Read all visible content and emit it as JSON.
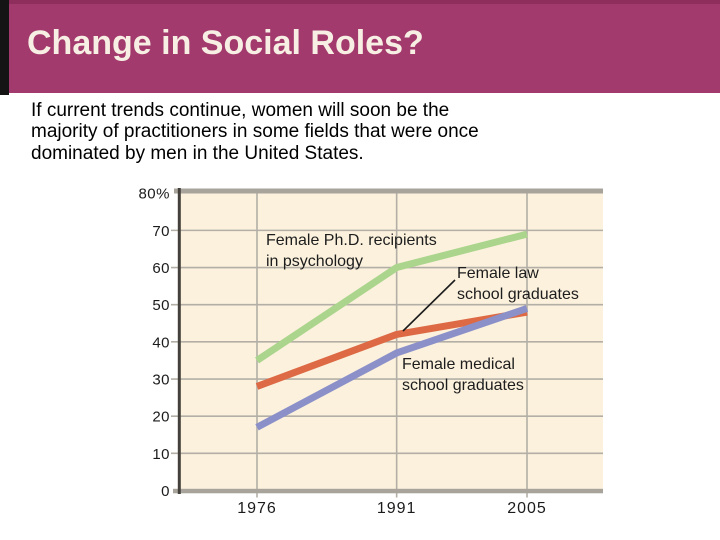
{
  "header": {
    "title": "Change in Social Roles?"
  },
  "body": {
    "lines": [
      "If current trends continue, women will soon be the",
      "majority of practitioners in some fields that were once",
      "dominated by men in the United States."
    ]
  },
  "colors": {
    "slide_bg": "#ffffff",
    "black_edge": "#141414",
    "header_bg": "#a23a6e",
    "header_top_edge": "#8d2e5c",
    "title_text": "#f7efe3",
    "plot_bg": "#fbf1dd",
    "gridline": "#b3afa6",
    "axis_gray": "#a8a49c",
    "axis_dark": "#44413c",
    "label_text": "#1b1b1b"
  },
  "chart_data": {
    "type": "line",
    "title": "",
    "xlabel": "",
    "ylabel": "",
    "x": [
      1976,
      1991,
      2005
    ],
    "x_tick_labels": [
      "1976",
      "1991",
      "2005"
    ],
    "y_ticks": [
      0,
      10,
      20,
      30,
      40,
      50,
      60,
      70,
      80
    ],
    "y_tick_labels": [
      "0",
      "10",
      "20",
      "30",
      "40",
      "50",
      "60",
      "70",
      "80%"
    ],
    "ylim": [
      0,
      80
    ],
    "grid": true,
    "legend_position": "inline-annotations",
    "series": [
      {
        "name": "Female Ph.D. recipients in psychology",
        "color": "#abd48c",
        "values": [
          35,
          60,
          69
        ],
        "label_lines": [
          "Female Ph.D. recipients",
          "in psychology"
        ]
      },
      {
        "name": "Female law school graduates",
        "color": "#dd6a44",
        "values": [
          28,
          42,
          48
        ],
        "label_lines": [
          "Female law",
          "school graduates"
        ]
      },
      {
        "name": "Female medical school graduates",
        "color": "#8b90c9",
        "values": [
          17,
          37,
          49
        ],
        "label_lines": [
          "Female medical",
          "school graduates"
        ]
      }
    ]
  }
}
